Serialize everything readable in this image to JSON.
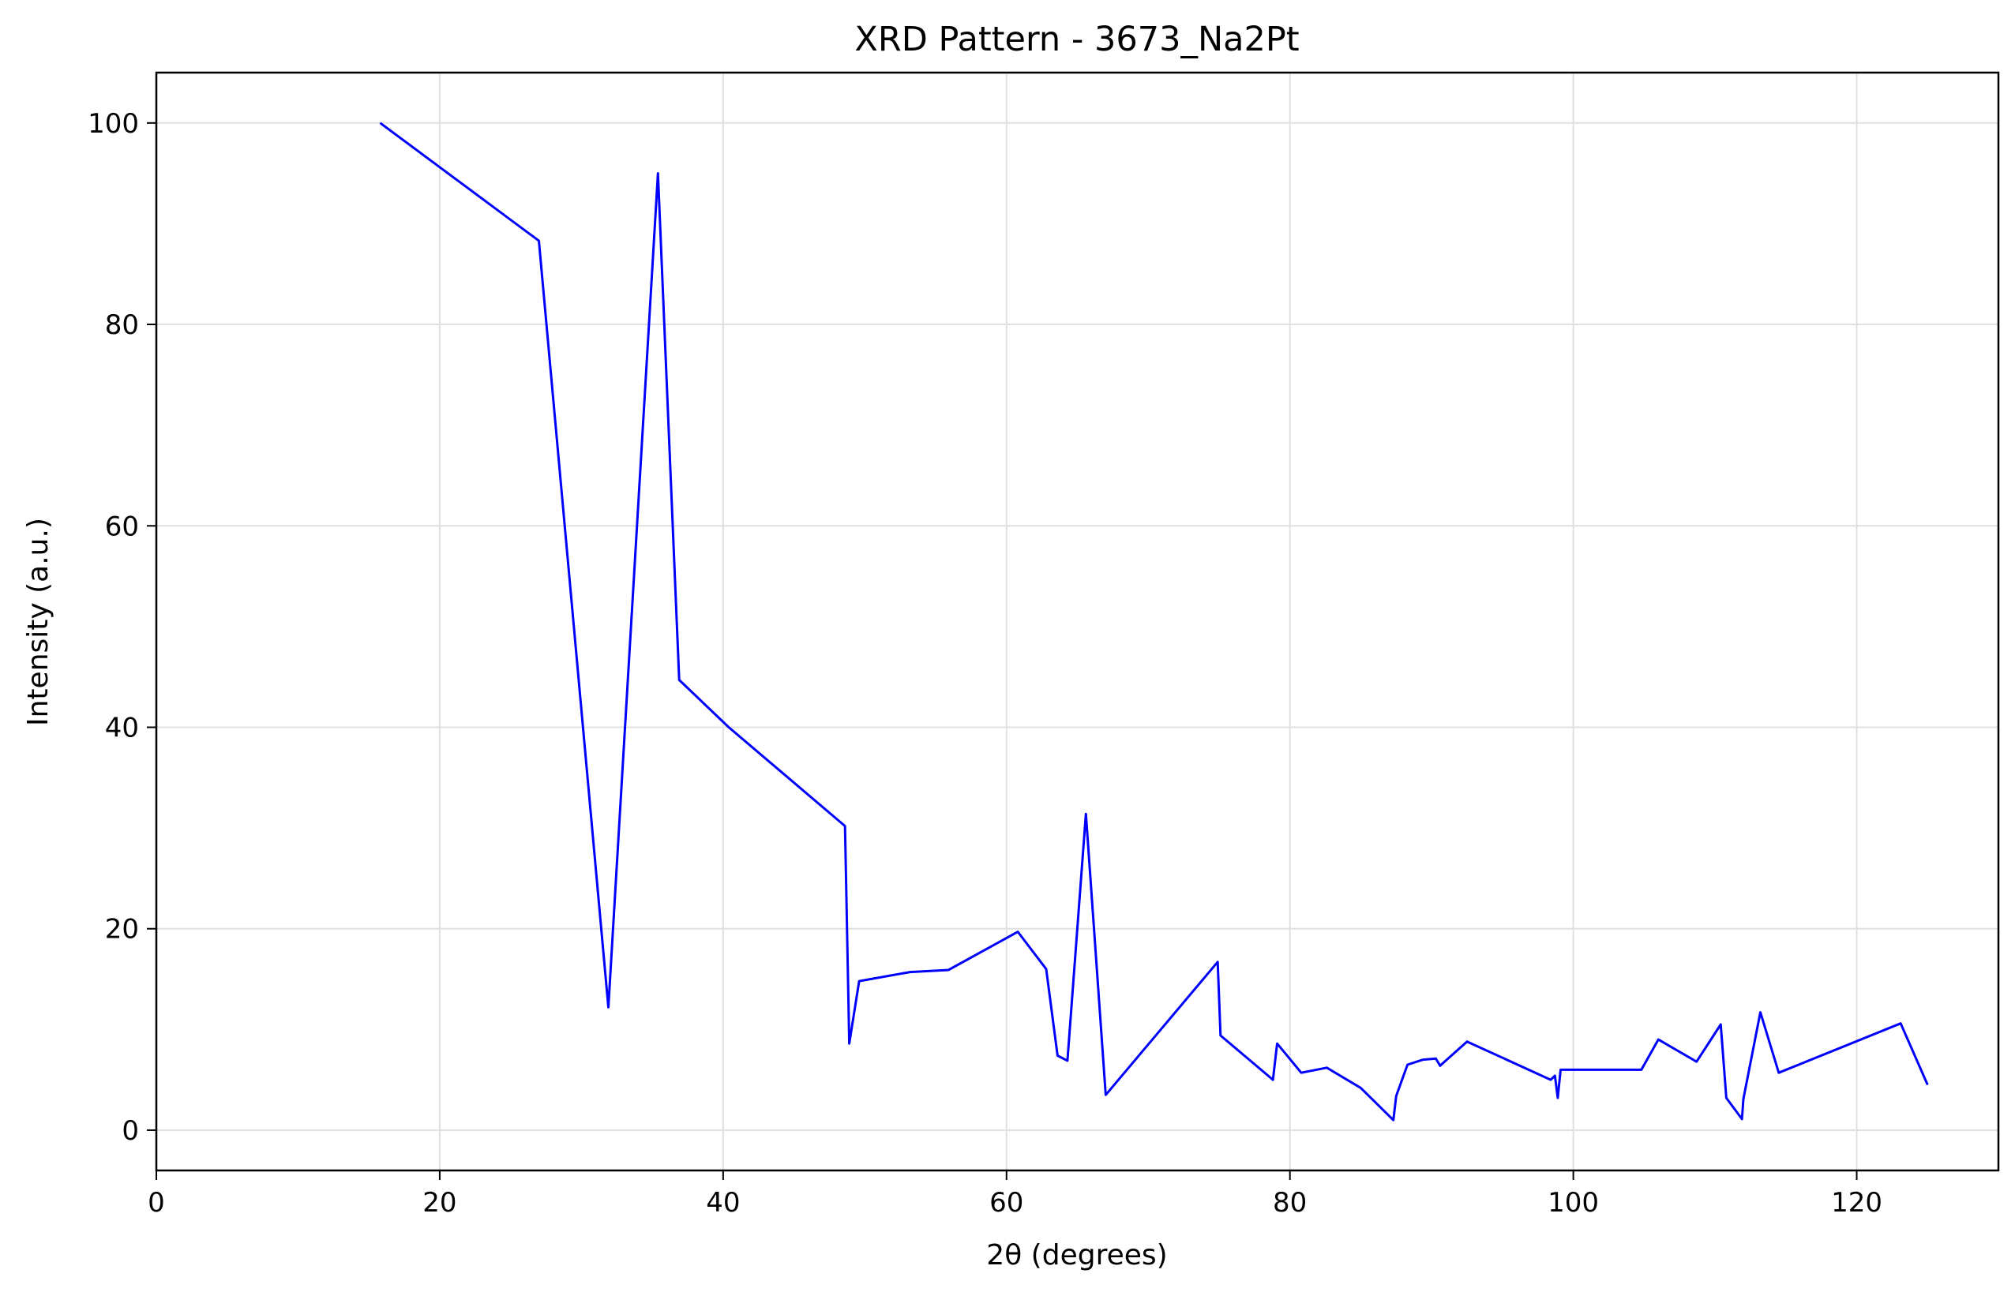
{
  "chart_data": {
    "type": "line",
    "title": "XRD Pattern - 3673_Na2Pt",
    "xlabel": "2θ (degrees)",
    "ylabel": "Intensity (a.u.)",
    "xlim": [
      0,
      130
    ],
    "ylim": [
      -4,
      105
    ],
    "xticks": [
      0,
      20,
      40,
      60,
      80,
      100,
      120
    ],
    "yticks": [
      0,
      20,
      40,
      60,
      80,
      100
    ],
    "grid": true,
    "line_color": "#0000ff",
    "series": [
      {
        "x": [
          15.8,
          27.0,
          31.9,
          35.4,
          36.9,
          40.4,
          48.6,
          48.9,
          49.6,
          53.2,
          55.9,
          60.8,
          62.8,
          63.6,
          64.3,
          65.6,
          67.0,
          74.9,
          75.1,
          78.8,
          79.1,
          80.8,
          82.6,
          85.0,
          87.3,
          87.5,
          88.3,
          89.4,
          90.3,
          90.6,
          92.5,
          98.4,
          98.7,
          98.9,
          99.1,
          104.8,
          106.0,
          108.7,
          110.4,
          110.8,
          111.9,
          112.0,
          113.2,
          114.5,
          123.1,
          125.0
        ],
        "y": [
          100.0,
          88.3,
          12.2,
          95.0,
          44.7,
          40.0,
          30.2,
          8.6,
          14.8,
          15.7,
          15.9,
          19.7,
          16.0,
          7.4,
          6.9,
          31.4,
          3.5,
          16.7,
          9.4,
          5.0,
          8.6,
          5.7,
          6.2,
          4.2,
          1.0,
          3.4,
          6.5,
          7.0,
          7.1,
          6.4,
          8.8,
          5.0,
          5.4,
          3.2,
          6.0,
          6.0,
          9.0,
          6.8,
          10.5,
          3.2,
          1.1,
          3.1,
          11.7,
          5.7,
          10.6,
          4.5
        ]
      }
    ]
  }
}
